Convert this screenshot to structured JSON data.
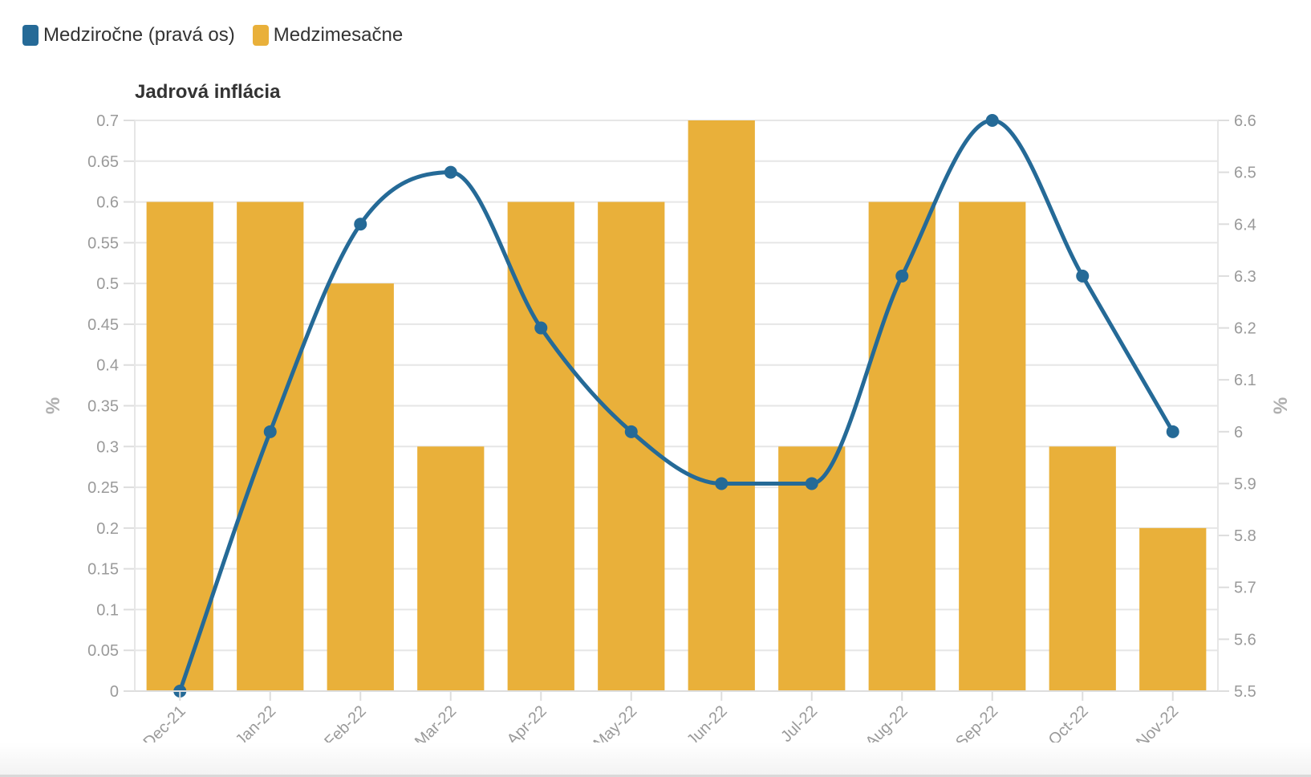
{
  "legend": {
    "items": [
      {
        "label": "Medziročne (pravá os)",
        "color": "#256a97"
      },
      {
        "label": "Medzimesačne",
        "color": "#e9b03a"
      }
    ]
  },
  "chart_data": {
    "type": "bar",
    "title": "Jadrová inflácia",
    "categories": [
      "Dec-21",
      "Jan-22",
      "Feb-22",
      "Mar-22",
      "Apr-22",
      "May-22",
      "Jun-22",
      "Jul-22",
      "Aug-22",
      "Sep-22",
      "Oct-22",
      "Nov-22"
    ],
    "series": [
      {
        "name": "Medzimesačne",
        "type": "bar",
        "axis": "left",
        "color": "#e9b03a",
        "values": [
          0.6,
          0.6,
          0.5,
          0.3,
          0.6,
          0.6,
          0.7,
          0.3,
          0.6,
          0.6,
          0.3,
          0.2
        ]
      },
      {
        "name": "Medziročne (pravá os)",
        "type": "line",
        "smooth": true,
        "axis": "right",
        "color": "#256a97",
        "values": [
          5.5,
          6.0,
          6.4,
          6.5,
          6.2,
          6.0,
          5.9,
          5.9,
          6.3,
          6.6,
          6.3,
          6.0
        ]
      }
    ],
    "ylabel": "%",
    "ylabel_right": "%",
    "ylim": [
      0,
      0.7
    ],
    "ylim_right": [
      5.5,
      6.6
    ],
    "yticks": [
      "0",
      "0.05",
      "0.1",
      "0.15",
      "0.2",
      "0.25",
      "0.3",
      "0.35",
      "0.4",
      "0.45",
      "0.5",
      "0.55",
      "0.6",
      "0.65",
      "0.7"
    ],
    "yticks_right": [
      "5.5",
      "5.6",
      "5.7",
      "5.8",
      "5.9",
      "6",
      "6.1",
      "6.2",
      "6.3",
      "6.4",
      "6.5",
      "6.6"
    ],
    "grid": true,
    "legend_position": "top-left"
  }
}
